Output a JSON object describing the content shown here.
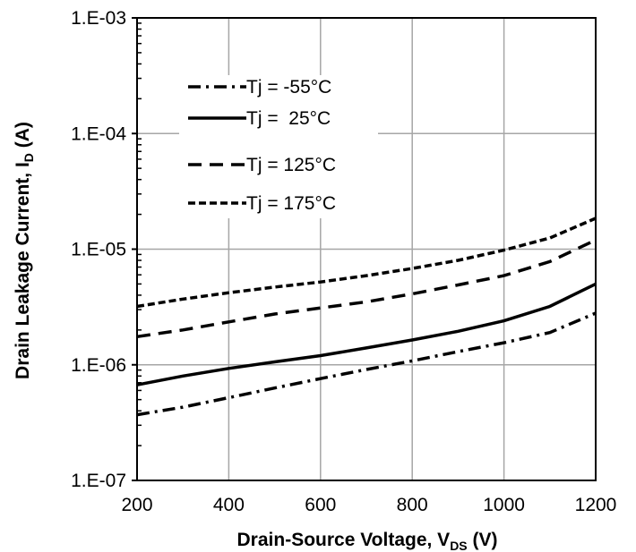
{
  "chart_data": {
    "type": "line",
    "xlabel_main": "Drain-Source Voltage, V",
    "xlabel_sub": "DS",
    "xlabel_suffix": " (V)",
    "ylabel_main": "Drain Leakage Current, I",
    "ylabel_sub": "D",
    "ylabel_suffix": " (A)",
    "xlim": [
      200,
      1200
    ],
    "ylim": [
      1e-07,
      0.001
    ],
    "yscale": "log",
    "grid": true,
    "legend_position": "top-left",
    "x_ticks": [
      "200",
      "400",
      "600",
      "800",
      "1000",
      "1200"
    ],
    "y_ticks": [
      "1.E-07",
      "1.E-06",
      "1.E-05",
      "1.E-04",
      "1.E-03"
    ],
    "x": [
      200,
      300,
      400,
      500,
      600,
      700,
      800,
      900,
      1000,
      1100,
      1200
    ],
    "series": [
      {
        "name": "Tj = -55°C",
        "dash": "dashdot",
        "color": "#000000",
        "values": [
          3.7e-07,
          4.3e-07,
          5.2e-07,
          6.3e-07,
          7.6e-07,
          9.1e-07,
          1.08e-06,
          1.3e-06,
          1.55e-06,
          1.9e-06,
          2.8e-06
        ]
      },
      {
        "name": "Tj =  25°C",
        "dash": "solid",
        "color": "#000000",
        "values": [
          6.7e-07,
          8e-07,
          9.3e-07,
          1.06e-06,
          1.2e-06,
          1.4e-06,
          1.64e-06,
          1.95e-06,
          2.4e-06,
          3.2e-06,
          5e-06
        ]
      },
      {
        "name": "Tj = 125°C",
        "dash": "dash",
        "color": "#000000",
        "values": [
          1.75e-06,
          2e-06,
          2.35e-06,
          2.75e-06,
          3.1e-06,
          3.5e-06,
          4.1e-06,
          4.9e-06,
          5.9e-06,
          7.8e-06,
          1.2e-05
        ]
      },
      {
        "name": "Tj = 175°C",
        "dash": "shortdash",
        "color": "#000000",
        "values": [
          3.2e-06,
          3.7e-06,
          4.2e-06,
          4.7e-06,
          5.2e-06,
          5.9e-06,
          6.8e-06,
          8e-06,
          9.8e-06,
          1.25e-05,
          1.85e-05
        ]
      }
    ]
  }
}
